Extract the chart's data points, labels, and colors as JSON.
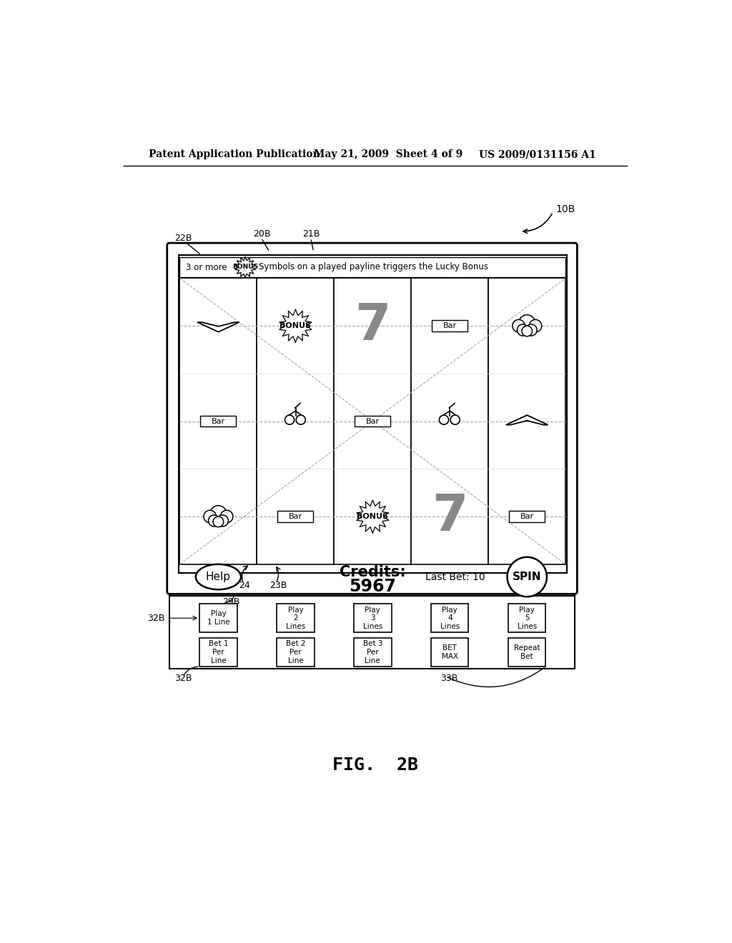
{
  "bg_color": "#ffffff",
  "header_left": "Patent Application Publication",
  "header_mid": "May 21, 2009  Sheet 4 of 9",
  "header_right": "US 2009/0131156 A1",
  "fig_label": "FIG.  2B",
  "ref_10B": "10B",
  "ref_22B": "22B",
  "ref_20B": "20B",
  "ref_21B": "21B",
  "ref_24": "24",
  "ref_23B": "23B",
  "ref_29B": "29B",
  "ref_32B_left": "32B",
  "ref_32B_bottom": "32B",
  "ref_33B": "33B",
  "credits_label": "Credits:",
  "credits_value": "5967",
  "last_bet": "Last Bet: 10",
  "help_btn": "Help",
  "spin_btn": "SPIN",
  "play_buttons": [
    "Play\n1 Line",
    "Play\n2\nLines",
    "Play\n3\nLines",
    "Play\n4\nLines",
    "Play\n5\nLines"
  ],
  "bet_buttons": [
    "Bet 1\nPer\nLine",
    "Bet 2\nPer\nLine",
    "Bet 3\nPer\nLine",
    "BET\nMAX",
    "Repeat\nBet"
  ]
}
